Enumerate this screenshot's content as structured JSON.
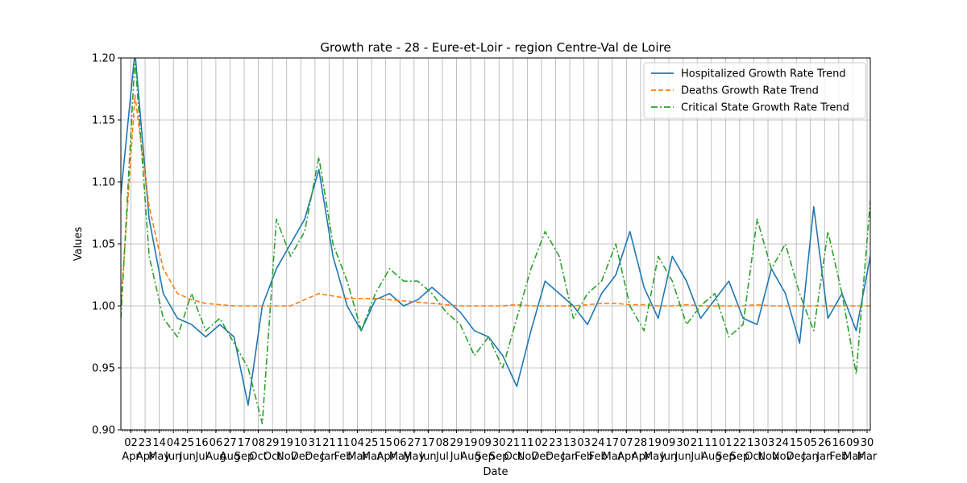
{
  "chart_data": {
    "type": "line",
    "title": "Growth rate - 28 - Eure-et-Loir - region Centre-Val de Loire",
    "xlabel": "Date",
    "ylabel": "Values",
    "ylim": [
      0.9,
      1.2
    ],
    "yticks": [
      "0.90",
      "0.95",
      "1.00",
      "1.05",
      "1.10",
      "1.15",
      "1.20"
    ],
    "grid": true,
    "legend_position": "top-right",
    "x_ticks": [
      {
        "day": "02",
        "month": "Apr"
      },
      {
        "day": "23",
        "month": "Apr"
      },
      {
        "day": "14",
        "month": "May"
      },
      {
        "day": "04",
        "month": "Jun"
      },
      {
        "day": "25",
        "month": "Jun"
      },
      {
        "day": "16",
        "month": "Jul"
      },
      {
        "day": "06",
        "month": "Aug"
      },
      {
        "day": "27",
        "month": "Aug"
      },
      {
        "day": "17",
        "month": "Sep"
      },
      {
        "day": "08",
        "month": "Oct"
      },
      {
        "day": "29",
        "month": "Oct"
      },
      {
        "day": "19",
        "month": "Nov"
      },
      {
        "day": "10",
        "month": "Dec"
      },
      {
        "day": "31",
        "month": "Dec"
      },
      {
        "day": "21",
        "month": "Jan"
      },
      {
        "day": "11",
        "month": "Feb"
      },
      {
        "day": "04",
        "month": "Mar"
      },
      {
        "day": "25",
        "month": "Mar"
      },
      {
        "day": "15",
        "month": "Apr"
      },
      {
        "day": "06",
        "month": "May"
      },
      {
        "day": "27",
        "month": "May"
      },
      {
        "day": "17",
        "month": "Jun"
      },
      {
        "day": "08",
        "month": "Jul"
      },
      {
        "day": "29",
        "month": "Jul"
      },
      {
        "day": "19",
        "month": "Aug"
      },
      {
        "day": "09",
        "month": "Sep"
      },
      {
        "day": "30",
        "month": "Sep"
      },
      {
        "day": "21",
        "month": "Oct"
      },
      {
        "day": "11",
        "month": "Nov"
      },
      {
        "day": "02",
        "month": "Dec"
      },
      {
        "day": "23",
        "month": "Dec"
      },
      {
        "day": "13",
        "month": "Jan"
      },
      {
        "day": "03",
        "month": "Feb"
      },
      {
        "day": "24",
        "month": "Feb"
      },
      {
        "day": "17",
        "month": "Mar"
      },
      {
        "day": "07",
        "month": "Apr"
      },
      {
        "day": "28",
        "month": "Apr"
      },
      {
        "day": "19",
        "month": "May"
      },
      {
        "day": "09",
        "month": "Jun"
      },
      {
        "day": "30",
        "month": "Jun"
      },
      {
        "day": "21",
        "month": "Jul"
      },
      {
        "day": "11",
        "month": "Aug"
      },
      {
        "day": "01",
        "month": "Sep"
      },
      {
        "day": "22",
        "month": "Sep"
      },
      {
        "day": "13",
        "month": "Oct"
      },
      {
        "day": "03",
        "month": "Nov"
      },
      {
        "day": "24",
        "month": "Nov"
      },
      {
        "day": "15",
        "month": "Dec"
      },
      {
        "day": "05",
        "month": "Jan"
      },
      {
        "day": "26",
        "month": "Jan"
      },
      {
        "day": "16",
        "month": "Feb"
      },
      {
        "day": "09",
        "month": "Mar"
      },
      {
        "day": "30",
        "month": "Mar"
      }
    ],
    "x": [
      0,
      3,
      6,
      9,
      12,
      15,
      18,
      21,
      24,
      27,
      30,
      33,
      36,
      39,
      42,
      45,
      48,
      51,
      54,
      57,
      60,
      63,
      66,
      69,
      72,
      75,
      78,
      81,
      84,
      87,
      90,
      93,
      96,
      99,
      102,
      105,
      108,
      111,
      114,
      117,
      120,
      123,
      126,
      129,
      132,
      135,
      138,
      141,
      144,
      147,
      150,
      153,
      156,
      159
    ],
    "series": [
      {
        "name": "Hospitalized Growth Rate Trend",
        "color": "#1f77b4",
        "dash": "solid",
        "values": [
          1.09,
          1.205,
          1.07,
          1.01,
          0.99,
          0.985,
          0.975,
          0.985,
          0.975,
          0.92,
          1.0,
          1.03,
          1.05,
          1.07,
          1.11,
          1.04,
          1.0,
          0.98,
          1.005,
          1.01,
          1.0,
          1.005,
          1.015,
          1.005,
          0.995,
          0.98,
          0.975,
          0.96,
          0.935,
          0.98,
          1.02,
          1.01,
          1.0,
          0.985,
          1.01,
          1.025,
          1.06,
          1.015,
          0.99,
          1.04,
          1.02,
          0.99,
          1.005,
          1.02,
          0.99,
          0.985,
          1.03,
          1.01,
          0.97,
          1.08,
          0.99,
          1.01,
          0.98,
          1.04
        ]
      },
      {
        "name": "Deaths Growth Rate Trend",
        "color": "#ff7f0e",
        "dash": "dashed",
        "values": [
          1.0,
          1.17,
          1.08,
          1.03,
          1.01,
          1.005,
          1.002,
          1.001,
          1.0,
          1.0,
          1.0,
          1.0,
          1.0,
          1.005,
          1.01,
          1.008,
          1.006,
          1.006,
          1.006,
          1.005,
          1.004,
          1.003,
          1.002,
          1.001,
          1.0,
          1.0,
          1.0,
          1.0,
          1.001,
          1.0,
          1.0,
          1.0,
          1.0,
          1.001,
          1.002,
          1.002,
          1.001,
          1.001,
          1.0,
          1.0,
          1.001,
          1.0,
          1.0,
          1.0,
          1.0,
          1.001,
          1.0,
          1.0,
          1.0,
          1.0,
          1.0,
          1.0,
          1.0,
          1.0
        ]
      },
      {
        "name": "Critical State Growth Rate Trend",
        "color": "#2ca02c",
        "dash": "dashdot",
        "values": [
          0.99,
          1.2,
          1.04,
          0.99,
          0.975,
          1.01,
          0.98,
          0.99,
          0.97,
          0.95,
          0.905,
          1.07,
          1.04,
          1.06,
          1.12,
          1.05,
          1.02,
          0.98,
          1.01,
          1.03,
          1.02,
          1.02,
          1.01,
          0.995,
          0.985,
          0.96,
          0.975,
          0.95,
          0.99,
          1.03,
          1.06,
          1.04,
          0.99,
          1.01,
          1.02,
          1.05,
          1.0,
          0.98,
          1.04,
          1.02,
          0.985,
          1.0,
          1.01,
          0.975,
          0.985,
          1.07,
          1.03,
          1.05,
          1.01,
          0.98,
          1.06,
          1.01,
          0.945,
          1.085
        ]
      }
    ]
  }
}
